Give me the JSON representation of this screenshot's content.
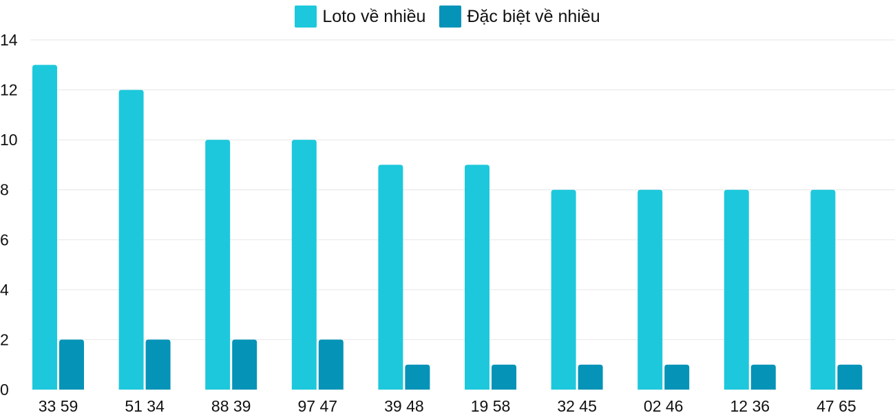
{
  "chart_data": {
    "type": "bar",
    "title": "",
    "xlabel": "",
    "ylabel": "",
    "categories": [
      "33 59",
      "51 34",
      "88 39",
      "97 47",
      "39 48",
      "19 58",
      "32 45",
      "02 46",
      "12 36",
      "47 65"
    ],
    "series": [
      {
        "name": "Loto về nhiều",
        "color": "#1ec8dc",
        "values": [
          13,
          12,
          10,
          10,
          9,
          9,
          8,
          8,
          8,
          8
        ]
      },
      {
        "name": "Đặc biệt về nhiều",
        "color": "#0693b8",
        "values": [
          2,
          2,
          2,
          2,
          1,
          1,
          1,
          1,
          1,
          1
        ]
      }
    ],
    "ylim": [
      0,
      14
    ],
    "yticks": [
      0,
      2,
      4,
      6,
      8,
      10,
      12,
      14
    ],
    "grid": true,
    "legend": "top-center"
  }
}
